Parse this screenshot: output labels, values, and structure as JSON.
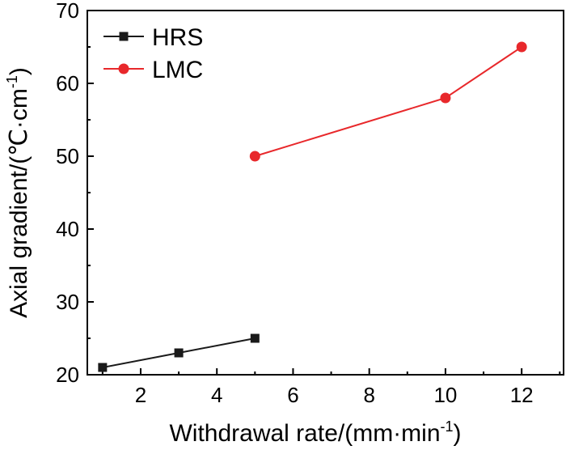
{
  "chart_data": {
    "type": "line",
    "title": "",
    "xlabel": "Withdrawal rate/(mm·min",
    "xlabel_sup": "-1",
    "xlabel_end": ")",
    "ylabel": "Axial gradient/(℃·cm",
    "ylabel_sup": "-1",
    "ylabel_end": ")",
    "xlim": [
      0.6,
      13.1
    ],
    "ylim": [
      20,
      70
    ],
    "xticks": [
      2,
      4,
      6,
      8,
      10,
      12
    ],
    "yticks": [
      20,
      30,
      40,
      50,
      60,
      70
    ],
    "legend_position": "top-left",
    "series": [
      {
        "name": "HRS",
        "color": "#1a1a1a",
        "marker": "square",
        "x": [
          1,
          3,
          5
        ],
        "y": [
          21,
          23,
          25
        ]
      },
      {
        "name": "LMC",
        "color": "#e8282b",
        "marker": "circle",
        "x": [
          5,
          10,
          12
        ],
        "y": [
          50,
          58,
          65
        ]
      }
    ]
  }
}
